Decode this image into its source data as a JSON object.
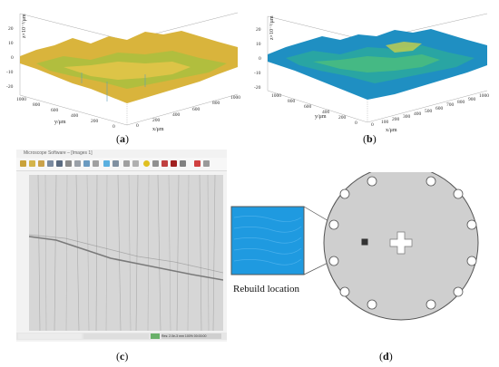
{
  "panels": {
    "a": {
      "label_open": "(",
      "label_letter": "a",
      "label_close": ")"
    },
    "b": {
      "label_open": "(",
      "label_letter": "b",
      "label_close": ")"
    },
    "c": {
      "label_open": "(",
      "label_letter": "c",
      "label_close": ")"
    },
    "d": {
      "label_open": "(",
      "label_letter": "d",
      "label_close": ")"
    }
  },
  "plot_a": {
    "zlabel": "z×10⁻³/μm",
    "xlabel": "x/μm",
    "ylabel": "y/μm",
    "z_ticks": [
      "20",
      "10",
      "0",
      "-10",
      "-20"
    ],
    "x_ticks": [
      "0",
      "200",
      "400",
      "600",
      "800",
      "1000"
    ],
    "y_ticks": [
      "1000",
      "800",
      "600",
      "400",
      "200",
      "0"
    ],
    "colors": [
      "#e0b53a",
      "#b7c13c",
      "#7cbf5a",
      "#3a8fb5"
    ]
  },
  "plot_b": {
    "zlabel": "z×10⁻³/μm",
    "xlabel": "x/μm",
    "ylabel": "y/μm",
    "z_ticks": [
      "20",
      "10",
      "0",
      "-10",
      "-20"
    ],
    "x_ticks": [
      "0",
      "100",
      "200",
      "300",
      "400",
      "500",
      "600",
      "700",
      "800",
      "900",
      "1000"
    ],
    "y_ticks": [
      "1000",
      "800",
      "600",
      "400",
      "200",
      "0"
    ],
    "colors": [
      "#2aa7a0",
      "#1f8fc2",
      "#4fc07a",
      "#c7d04a"
    ]
  },
  "window_c": {
    "title": "Microscope Software – [Images 1]",
    "status_text": "Res: 2.0e-3 mm  100% 00:00:00"
  },
  "figure_d": {
    "rebuild_label": "Rebuild location"
  }
}
